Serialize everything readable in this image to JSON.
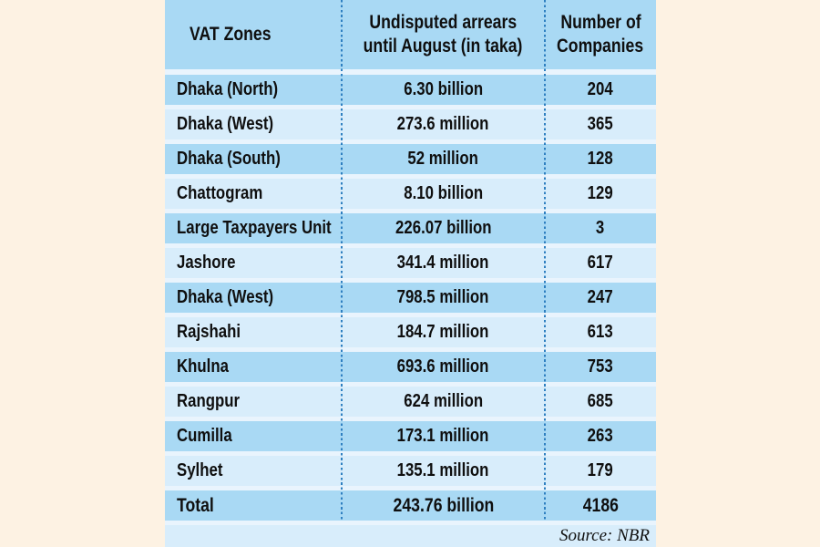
{
  "chart_data": {
    "type": "table",
    "columns": [
      "VAT Zones",
      "Undisputed arrears until August (in taka)",
      "Number of Companies"
    ],
    "header_display": {
      "col1": "VAT Zones",
      "col2_line1": "Undisputed arrears",
      "col2_line2": "until August (in taka)",
      "col3_line1": "Number of",
      "col3_line2": "Companies"
    },
    "rows": [
      {
        "zone": "Dhaka (North)",
        "arrears": "6.30 billion",
        "companies": "204"
      },
      {
        "zone": "Dhaka (West)",
        "arrears": "273.6 million",
        "companies": "365"
      },
      {
        "zone": "Dhaka (South)",
        "arrears": "52 million",
        "companies": "128"
      },
      {
        "zone": "Chattogram",
        "arrears": "8.10 billion",
        "companies": "129"
      },
      {
        "zone": "Large Taxpayers Unit",
        "arrears": "226.07 billion",
        "companies": "3"
      },
      {
        "zone": "Jashore",
        "arrears": "341.4 million",
        "companies": "617"
      },
      {
        "zone": "Dhaka (West)",
        "arrears": "798.5 million",
        "companies": "247"
      },
      {
        "zone": "Rajshahi",
        "arrears": "184.7 million",
        "companies": "613"
      },
      {
        "zone": "Khulna",
        "arrears": "693.6 million",
        "companies": "753"
      },
      {
        "zone": "Rangpur",
        "arrears": "624 million",
        "companies": "685"
      },
      {
        "zone": "Cumilla",
        "arrears": "173.1 million",
        "companies": "263"
      },
      {
        "zone": "Sylhet",
        "arrears": "135.1 million",
        "companies": "179"
      }
    ],
    "total": {
      "zone": "Total",
      "arrears": "243.76 billion",
      "companies": "4186"
    },
    "source": "Source: NBR"
  },
  "colors": {
    "page_background": "#fdf2e3",
    "row_medium_blue": "#a9d9f4",
    "row_pale_blue": "#d8edfb",
    "row_separator": "#e9f4fd",
    "divider_dotted_blue": "#2e7fc0",
    "text": "#0f0f0f"
  }
}
